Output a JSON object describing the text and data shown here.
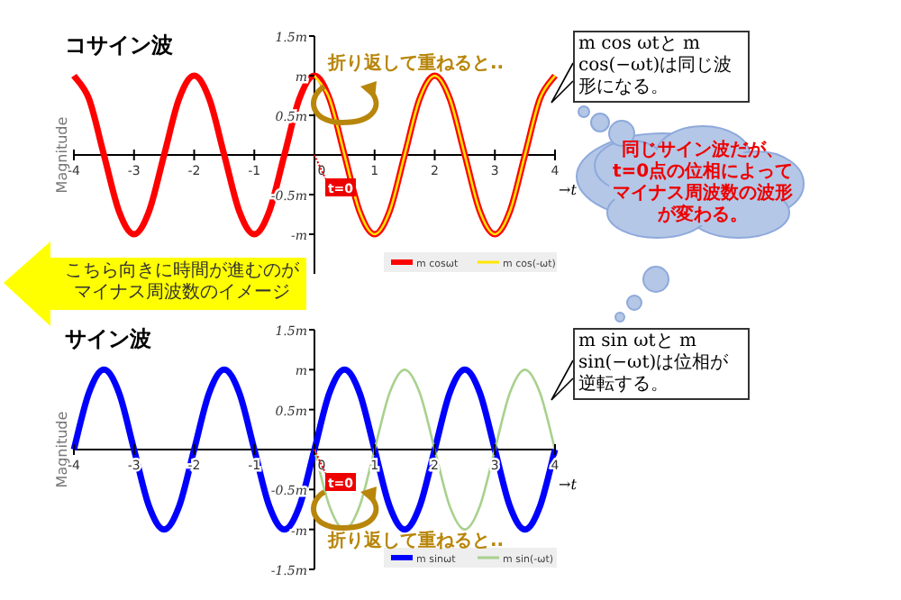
{
  "chart_data": [
    {
      "type": "line",
      "title": "コサイン波",
      "ylabel": "Magnitude",
      "xlabel": "→t",
      "xlim": [
        -4,
        4
      ],
      "ylim": [
        -1.5,
        1.5
      ],
      "xticks": [
        -4,
        -3,
        -2,
        -1,
        0,
        1,
        2,
        3,
        4
      ],
      "yticks": [
        {
          "value": 1.5,
          "label": "1.5m"
        },
        {
          "value": 1,
          "label": "m"
        },
        {
          "value": 0.5,
          "label": "0.5m"
        },
        {
          "value": -0.5,
          "label": "-0.5m"
        },
        {
          "value": -1,
          "label": "-m"
        }
      ],
      "grid": false,
      "legend": "bottom right",
      "series": [
        {
          "name": "m cosωt",
          "color": "#ff0000",
          "x": [
            -4,
            -3.75,
            -3.5,
            -3.25,
            -3,
            -2.75,
            -2.5,
            -2.25,
            -2,
            -1.75,
            -1.5,
            -1.25,
            -1,
            -0.75,
            -0.5,
            -0.25,
            0,
            0.25,
            0.5,
            0.75,
            1,
            1.25,
            1.5,
            1.75,
            2,
            2.25,
            2.5,
            2.75,
            3,
            3.25,
            3.5,
            3.75,
            4
          ],
          "values": [
            1,
            0.71,
            0,
            -0.71,
            -1,
            -0.71,
            0,
            0.71,
            1,
            0.71,
            0,
            -0.71,
            -1,
            -0.71,
            0,
            0.71,
            1,
            0.71,
            0,
            -0.71,
            -1,
            -0.71,
            0,
            0.71,
            1,
            0.71,
            0,
            -0.71,
            -1,
            -0.71,
            0,
            0.71,
            1
          ]
        },
        {
          "name": "m cos(-ωt)",
          "color": "#ffe600",
          "x": [
            0,
            0.25,
            0.5,
            0.75,
            1,
            1.25,
            1.5,
            1.75,
            2,
            2.25,
            2.5,
            2.75,
            3,
            3.25,
            3.5,
            3.75,
            4
          ],
          "values": [
            1,
            0.71,
            0,
            -0.71,
            -1,
            -0.71,
            0,
            0.71,
            1,
            0.71,
            0,
            -0.71,
            -1,
            -0.71,
            0,
            0.71,
            1
          ]
        }
      ],
      "annotations": [
        "t=0",
        "折り返して重ねると..",
        "m cos ωtと m cos(−ωt)は同じ波形になる。",
        "同じサイン波だが、t=0点の位相によってマイナス周波数の波形が変わる。",
        "こちら向きに時間が進むのがマイナス周波数のイメージ"
      ]
    },
    {
      "type": "line",
      "title": "サイン波",
      "ylabel": "Magnitude",
      "xlabel": "→t",
      "xlim": [
        -4,
        4
      ],
      "ylim": [
        -1.5,
        1.5
      ],
      "xticks": [
        -4,
        -3,
        -2,
        -1,
        0,
        1,
        2,
        3,
        4
      ],
      "yticks": [
        {
          "value": 1.5,
          "label": "1.5m"
        },
        {
          "value": 1,
          "label": "m"
        },
        {
          "value": 0.5,
          "label": "0.5m"
        },
        {
          "value": -0.5,
          "label": "-0.5m"
        },
        {
          "value": -1,
          "label": "-m"
        },
        {
          "value": -1.5,
          "label": "-1.5m"
        }
      ],
      "grid": false,
      "legend": "bottom right",
      "series": [
        {
          "name": "m sinωt",
          "color": "#0000ff",
          "x": [
            -4,
            -3.75,
            -3.5,
            -3.25,
            -3,
            -2.75,
            -2.5,
            -2.25,
            -2,
            -1.75,
            -1.5,
            -1.25,
            -1,
            -0.75,
            -0.5,
            -0.25,
            0,
            0.25,
            0.5,
            0.75,
            1,
            1.25,
            1.5,
            1.75,
            2,
            2.25,
            2.5,
            2.75,
            3,
            3.25,
            3.5,
            3.75,
            4
          ],
          "values": [
            0,
            0.71,
            1,
            0.71,
            0,
            -0.71,
            -1,
            -0.71,
            0,
            0.71,
            1,
            0.71,
            0,
            -0.71,
            -1,
            -0.71,
            0,
            0.71,
            1,
            0.71,
            0,
            -0.71,
            -1,
            -0.71,
            0,
            0.71,
            1,
            0.71,
            0,
            -0.71,
            -1,
            -0.71,
            0
          ]
        },
        {
          "name": "m sin(-ωt)",
          "color": "#a9d18e",
          "x": [
            0,
            0.25,
            0.5,
            0.75,
            1,
            1.25,
            1.5,
            1.75,
            2,
            2.25,
            2.5,
            2.75,
            3,
            3.25,
            3.5,
            3.75,
            4
          ],
          "values": [
            0,
            -0.71,
            -1,
            -0.71,
            0,
            0.71,
            1,
            0.71,
            0,
            -0.71,
            -1,
            -0.71,
            0,
            0.71,
            1,
            0.71,
            0
          ]
        }
      ],
      "annotations": [
        "t=0",
        "折り返して重ねると..",
        "m sin ωtと m sin(−ωt)は位相が逆転する。"
      ]
    }
  ]
}
